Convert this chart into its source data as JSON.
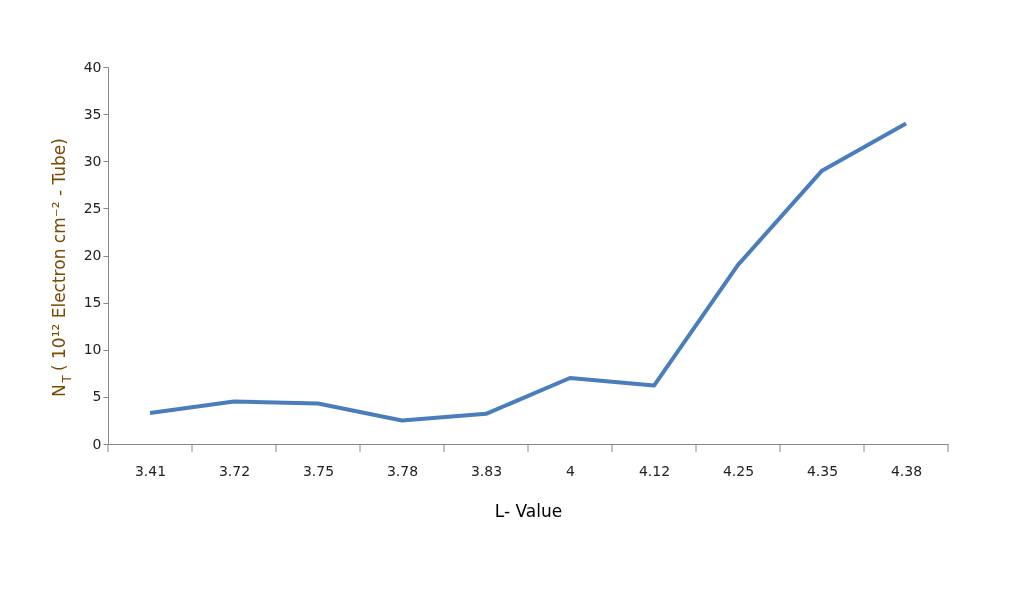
{
  "chart_data": {
    "type": "line",
    "xlabel": "L- Value",
    "ylabel": "N$_{T}$ ( 10¹² Electron cm⁻² - Tube)",
    "categories": [
      "3.41",
      "3.72",
      "3.75",
      "3.78",
      "3.83",
      "4",
      "4.12",
      "4.25",
      "4.35",
      "4.38"
    ],
    "series": [
      {
        "color": "#4a7ebb",
        "values": [
          3.3,
          4.5,
          4.3,
          2.5,
          3.2,
          7.0,
          6.2,
          19.0,
          29.0,
          34.0
        ]
      }
    ],
    "ylim": [
      0,
      40
    ],
    "yticks": [
      0,
      5,
      10,
      15,
      20,
      25,
      30,
      35,
      40
    ],
    "grid": false,
    "marker": "none",
    "line_style": "solid"
  }
}
